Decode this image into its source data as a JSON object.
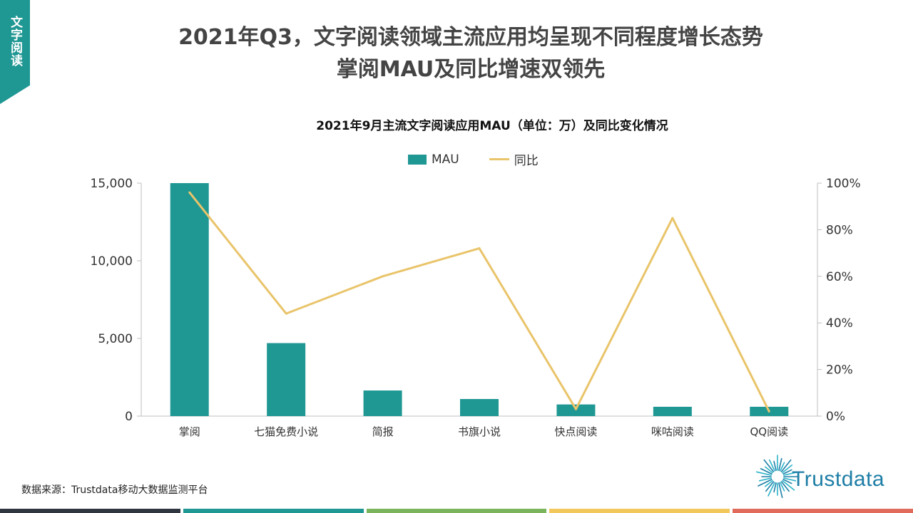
{
  "section_tab": "文字阅读",
  "headline": {
    "line1": "2021年Q3，文字阅读领域主流应用均呈现不同程度增长态势",
    "line2": "掌阅MAU及同比增速双领先"
  },
  "source": "数据来源：Trustdata移动大数据监测平台",
  "logo_text": "Trustdata",
  "footer_colors": [
    "#2f3640",
    "#1f9793",
    "#7ab55c",
    "#f2c75c",
    "#e06b5a"
  ],
  "colors": {
    "bar": "#1f9793",
    "line": "#e9c46a",
    "logo": "#1e7ea6"
  },
  "chart_data": {
    "type": "bar",
    "title": "2021年9月主流文字阅读应用MAU（单位：万）及同比变化情况",
    "categories": [
      "掌阅",
      "七猫免费小说",
      "简报",
      "书旗小说",
      "快点阅读",
      "咪咕阅读",
      "QQ阅读"
    ],
    "series": [
      {
        "name": "MAU",
        "type": "bar",
        "axis": "left",
        "values": [
          15000,
          4700,
          1650,
          1100,
          750,
          600,
          600
        ]
      },
      {
        "name": "同比",
        "type": "line",
        "axis": "right",
        "values": [
          96,
          44,
          60,
          72,
          3,
          85,
          2
        ]
      }
    ],
    "y_left": {
      "min": 0,
      "max": 15000,
      "ticks": [
        "0",
        "5,000",
        "10,000",
        "15,000"
      ],
      "tick_values": [
        0,
        5000,
        10000,
        15000
      ]
    },
    "y_right": {
      "min": 0,
      "max": 100,
      "ticks": [
        "0%",
        "20%",
        "40%",
        "60%",
        "80%",
        "100%"
      ],
      "tick_values": [
        0,
        20,
        40,
        60,
        80,
        100
      ]
    },
    "legend_position": "top-center",
    "grid": false
  }
}
